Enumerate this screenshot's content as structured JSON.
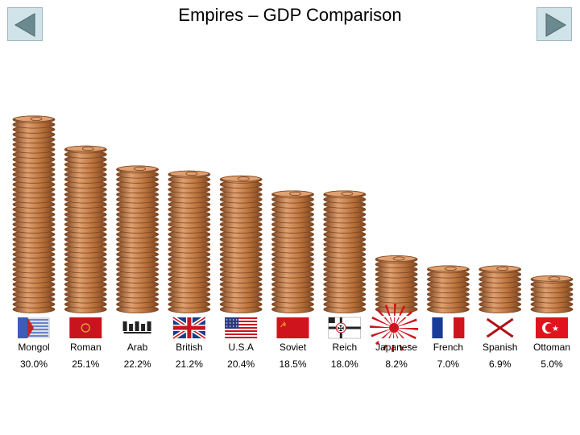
{
  "title": "Empires – GDP Comparison",
  "nav": {
    "prev_icon": "triangle-left-icon",
    "next_icon": "triangle-right-icon"
  },
  "colors": {
    "coin": "#b8703a",
    "coin_dark": "#7a4420",
    "coin_light": "#e0a070",
    "nav_bg": "#cfe3e8",
    "arrow": "#6b8a90"
  },
  "chart_data": {
    "type": "bar",
    "title": "Empires – GDP Comparison",
    "categories": [
      "Mongol",
      "Roman",
      "Arab",
      "British",
      "U.S.A",
      "Soviet",
      "Reich",
      "Japanese",
      "French",
      "Spanish",
      "Ottoman"
    ],
    "values": [
      30.0,
      25.1,
      22.2,
      21.2,
      20.4,
      18.5,
      18.0,
      8.2,
      7.0,
      6.9,
      5.0
    ],
    "value_labels": [
      "30.0%",
      "25.1%",
      "22.2%",
      "21.2%",
      "20.4%",
      "18.5%",
      "18.0%",
      "8.2%",
      "7.0%",
      "6.9%",
      "5.0%"
    ],
    "unit": "%",
    "flag_icons": [
      "mongol-flag-icon",
      "roman-flag-icon",
      "arab-flag-icon",
      "british-flag-icon",
      "usa-flag-icon",
      "soviet-flag-icon",
      "reich-flag-icon",
      "japanese-flag-icon",
      "french-flag-icon",
      "spanish-flag-icon",
      "ottoman-flag-icon"
    ],
    "bar_style": "stacked coins"
  }
}
